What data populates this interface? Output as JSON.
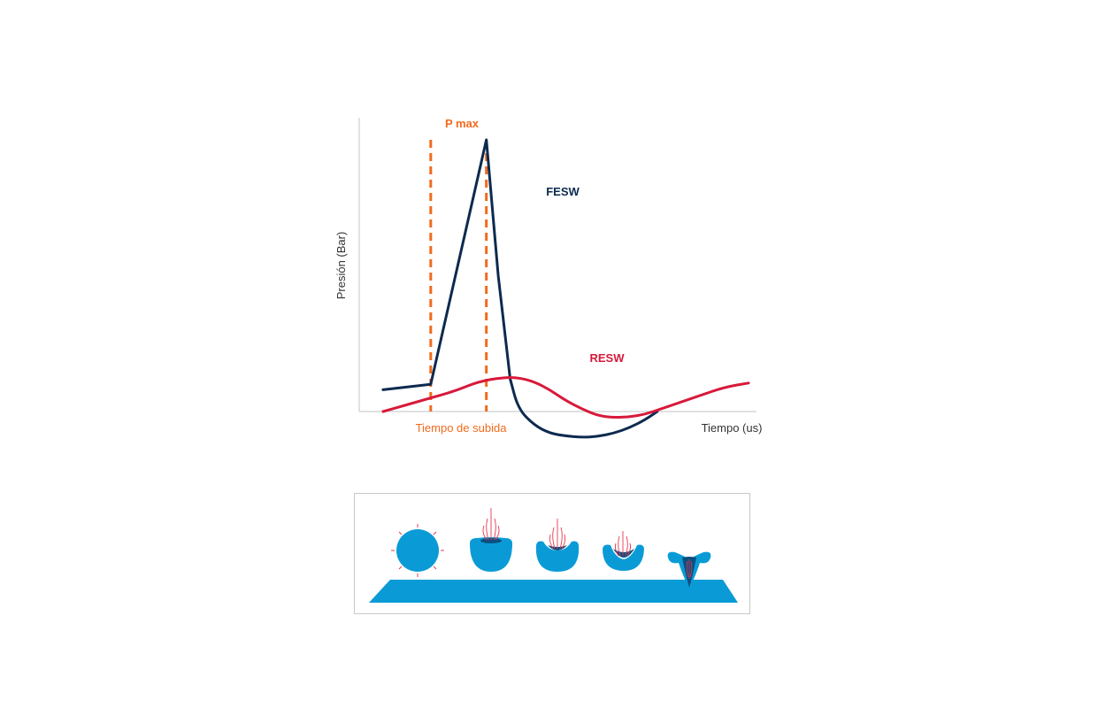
{
  "chart_data": {
    "type": "line",
    "xlabel": "Tiempo (us)",
    "ylabel": "Presión (Bar)",
    "annotations": {
      "peak_label": "P max",
      "rise_label": "Tiempo de subida"
    },
    "xlim": [
      0,
      100
    ],
    "ylim": [
      -10,
      100
    ],
    "series": [
      {
        "name": "FESW",
        "color": "#0d2a4f",
        "x": [
          6,
          18,
          32,
          35,
          38,
          40,
          44,
          48,
          52,
          56,
          60,
          64,
          68,
          72,
          75
        ],
        "y": [
          8,
          10,
          100,
          50,
          12,
          1,
          -5,
          -8,
          -9,
          -9.5,
          -9.2,
          -8,
          -6,
          -3,
          0
        ]
      },
      {
        "name": "RESW",
        "color": "#d8193a",
        "x": [
          6,
          12,
          18,
          24,
          30,
          36,
          40,
          44,
          48,
          52,
          56,
          60,
          64,
          68,
          72,
          76,
          80,
          86,
          92,
          98
        ],
        "y": [
          0,
          2.5,
          5,
          7.5,
          11,
          12.5,
          12.5,
          11,
          8,
          4,
          1,
          -1.5,
          -2.2,
          -2,
          -1,
          1,
          3,
          6,
          9,
          10.5
        ]
      }
    ],
    "reference_lines": {
      "color": "#f26a1b",
      "x": [
        18,
        32
      ]
    },
    "grid": false
  },
  "illustration": {
    "title": "",
    "colors": {
      "bubble": "#0a9bd7",
      "bubble_dark": "#0b4f80",
      "jet": "#e8384f",
      "surface": "#0a9bd7",
      "border": "#c8c8c8"
    },
    "stages": [
      "bubble-intact",
      "bubble-collapse-1",
      "bubble-collapse-2",
      "bubble-collapse-3",
      "bubble-jet-impact"
    ]
  }
}
